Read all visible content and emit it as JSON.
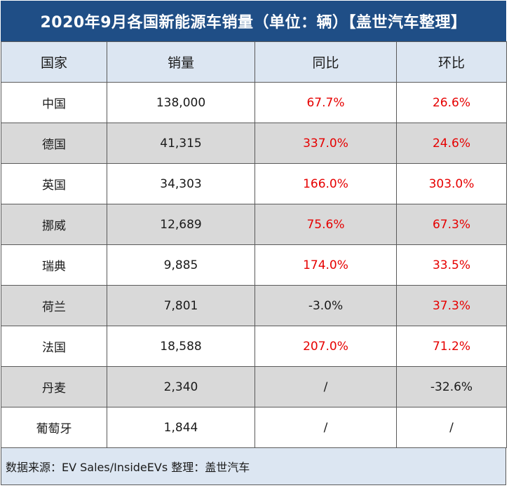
{
  "title": "2020年9月各国新能源车销量（单位：辆）【盖世汽车整理】",
  "columns": [
    "国家",
    "销量",
    "同比",
    "环比"
  ],
  "rows": [
    {
      "country": "中国",
      "sales": "138,000",
      "yoy": "67.7%",
      "mom": "26.6%",
      "yoy_red": true,
      "mom_red": true
    },
    {
      "country": "德国",
      "sales": "41,315",
      "yoy": "337.0%",
      "mom": "24.6%",
      "yoy_red": true,
      "mom_red": true
    },
    {
      "country": "英国",
      "sales": "34,303",
      "yoy": "166.0%",
      "mom": "303.0%",
      "yoy_red": true,
      "mom_red": true
    },
    {
      "country": "挪威",
      "sales": "12,689",
      "yoy": "75.6%",
      "mom": "67.3%",
      "yoy_red": true,
      "mom_red": true
    },
    {
      "country": "瑞典",
      "sales": "9,885",
      "yoy": "174.0%",
      "mom": "33.5%",
      "yoy_red": true,
      "mom_red": true
    },
    {
      "country": "荷兰",
      "sales": "7,801",
      "yoy": "-3.0%",
      "mom": "37.3%",
      "yoy_red": false,
      "mom_red": true
    },
    {
      "country": "法国",
      "sales": "18,588",
      "yoy": "207.0%",
      "mom": "71.2%",
      "yoy_red": true,
      "mom_red": true
    },
    {
      "country": "丹麦",
      "sales": "2,340",
      "yoy": "/",
      "mom": "-32.6%",
      "yoy_red": false,
      "mom_red": false
    },
    {
      "country": "葡萄牙",
      "sales": "1,844",
      "yoy": "/",
      "mom": "/",
      "yoy_red": false,
      "mom_red": false
    }
  ],
  "footer": "数据来源：EV Sales/InsideEVs 整理：盖世汽车",
  "colors": {
    "title_bg": "#1f4e86",
    "header_bg": "#dce6f2",
    "shade_row": "#d9d9d9",
    "positive_text": "#e60000"
  }
}
